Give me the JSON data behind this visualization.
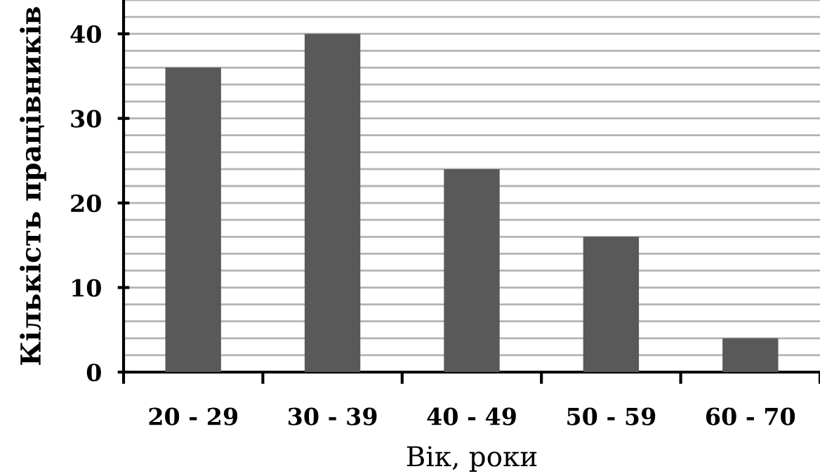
{
  "chart_data": {
    "type": "bar",
    "xlabel": "Вік, роки",
    "ylabel": "Кількість працівників",
    "categories": [
      "20 - 29",
      "30 - 39",
      "40 - 49",
      "50 - 59",
      "60 - 70"
    ],
    "values": [
      36,
      40,
      24,
      16,
      4
    ],
    "color": "#595959",
    "ylim": [
      0,
      44
    ],
    "yticks": [
      0,
      10,
      20,
      30,
      40
    ],
    "grid": "y"
  }
}
